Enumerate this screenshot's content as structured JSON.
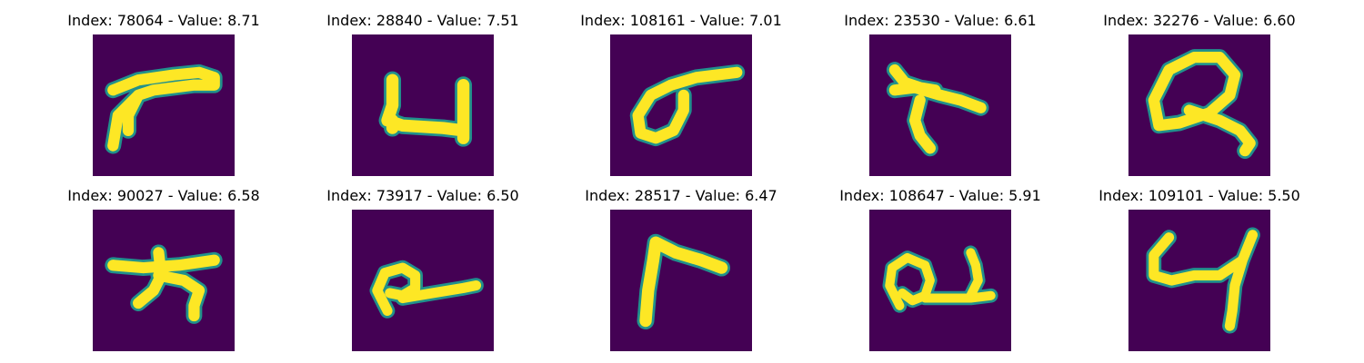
{
  "figure": {
    "panels": [
      {
        "title": "Index: 78064 - Value: 8.71",
        "index": 78064,
        "value": 8.71
      },
      {
        "title": "Index: 28840 - Value: 7.51",
        "index": 28840,
        "value": 7.51
      },
      {
        "title": "Index: 108161 - Value: 7.01",
        "index": 108161,
        "value": 7.01
      },
      {
        "title": "Index: 23530 - Value: 6.61",
        "index": 23530,
        "value": 6.61
      },
      {
        "title": "Index: 32276 - Value: 6.60",
        "index": 32276,
        "value": 6.6
      },
      {
        "title": "Index: 90027 - Value: 6.58",
        "index": 90027,
        "value": 6.58
      },
      {
        "title": "Index: 73917 - Value: 6.50",
        "index": 73917,
        "value": 6.5
      },
      {
        "title": "Index: 28517 - Value: 6.47",
        "index": 28517,
        "value": 6.47
      },
      {
        "title": "Index: 108647 - Value: 5.91",
        "index": 108647,
        "value": 5.91
      },
      {
        "title": "Index: 109101 - Value: 5.50",
        "index": 109101,
        "value": 5.5
      }
    ],
    "colors": {
      "background": "#440154",
      "edge": "#21918c",
      "stroke": "#fde725"
    }
  }
}
